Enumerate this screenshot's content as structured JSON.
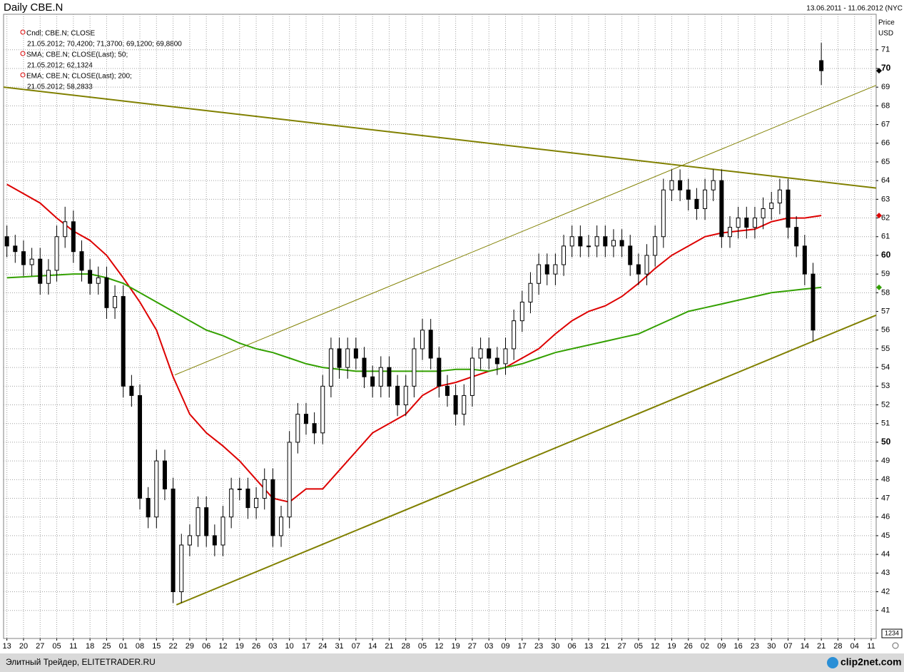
{
  "chart_data": {
    "type": "candlestick",
    "title": "Daily CBE.N",
    "date_range": "13.06.2011 - 11.06.2012 (NYC",
    "y_label": "Price",
    "y_unit": "USD",
    "categories": [
      "13",
      "20",
      "27",
      "05",
      "11",
      "18",
      "25",
      "01",
      "08",
      "15",
      "22",
      "29",
      "06",
      "12",
      "19",
      "26",
      "03",
      "10",
      "17",
      "24",
      "31",
      "07",
      "14",
      "21",
      "28",
      "05",
      "12",
      "19",
      "27",
      "03",
      "09",
      "17",
      "23",
      "30",
      "06",
      "13",
      "21",
      "27",
      "05",
      "12",
      "19",
      "26",
      "02",
      "09",
      "16",
      "23",
      "30",
      "07",
      "14",
      "21",
      "28",
      "04",
      "11"
    ],
    "xlim": [
      -0.2,
      52.3
    ],
    "ylim": [
      39.5,
      72.9
    ],
    "yticks": [
      41,
      42,
      43,
      44,
      45,
      46,
      47,
      48,
      49,
      50,
      51,
      52,
      53,
      54,
      55,
      56,
      57,
      58,
      59,
      60,
      61,
      62,
      63,
      64,
      65,
      66,
      67,
      68,
      69,
      70,
      71
    ],
    "grid": true,
    "axis_box": "1234",
    "candle_legend": {
      "name": "Cndl; CBE.N; CLOSE",
      "label": "21.05.2012; 70,4200; 71,3700; 69,1200; 69,8800"
    },
    "up_color": "#ffffff",
    "down_color": "#000000",
    "candles": {
      "x": [
        0,
        0.5,
        1,
        1.5,
        2,
        2.5,
        3,
        3.5,
        4,
        4.5,
        5,
        5.5,
        6,
        6.5,
        7,
        7.5,
        8,
        8.5,
        9,
        9.5,
        10,
        10.5,
        11,
        11.5,
        12,
        12.5,
        13,
        13.5,
        14,
        14.5,
        15,
        15.5,
        16,
        16.5,
        17,
        17.5,
        18,
        18.5,
        19,
        19.5,
        20,
        20.5,
        21,
        21.5,
        22,
        22.5,
        23,
        23.5,
        24,
        24.5,
        25,
        25.5,
        26,
        26.5,
        27,
        27.5,
        28,
        28.5,
        29,
        29.5,
        30,
        30.5,
        31,
        31.5,
        32,
        32.5,
        33,
        33.5,
        34,
        34.5,
        35,
        35.5,
        36,
        36.5,
        37,
        37.5,
        38,
        38.5,
        39,
        39.5,
        40,
        40.5,
        41,
        41.5,
        42,
        42.5,
        43,
        43.5,
        44,
        44.5,
        45,
        45.5,
        46,
        46.5,
        47,
        47.5,
        48,
        48.5,
        49
      ],
      "open": [
        61,
        60.5,
        60.2,
        59.5,
        59.8,
        58.5,
        59.2,
        61,
        61.8,
        60.2,
        59.2,
        58.5,
        58.8,
        57.2,
        57.8,
        53,
        52.5,
        47,
        46,
        49,
        47.5,
        42,
        44.5,
        45,
        46.5,
        45,
        44.5,
        46,
        47.5,
        47.5,
        46.5,
        47,
        48,
        45,
        46,
        50,
        51.5,
        51,
        50.5,
        53,
        55,
        54,
        55,
        54.5,
        53.5,
        53,
        54,
        53,
        52,
        53,
        55,
        56,
        54.5,
        53,
        52.5,
        51.5,
        52.5,
        54.5,
        55,
        54.5,
        54.2,
        55,
        56.5,
        57.5,
        58.5,
        59.5,
        59,
        59.5,
        60.5,
        61,
        60.5,
        60.5,
        61,
        60.5,
        60.8,
        60.5,
        59.5,
        59,
        60,
        61,
        63.5,
        64,
        63.5,
        63,
        62.5,
        63.5,
        64,
        61,
        61.5,
        62,
        61.5,
        62,
        62.5,
        62.8,
        63.5,
        61.5,
        60.5,
        59,
        70.42
      ],
      "high": [
        61.6,
        61.1,
        60.8,
        60.4,
        60.4,
        59.8,
        61.6,
        62.6,
        62.4,
        60.8,
        59.8,
        59.4,
        59.4,
        58.4,
        58.4,
        53.6,
        53.1,
        47.6,
        49.6,
        49.6,
        48.1,
        45.1,
        45.6,
        47.1,
        47.1,
        45.6,
        46.6,
        48.1,
        48.1,
        48.1,
        47.6,
        48.6,
        48.6,
        46.6,
        50.6,
        52.1,
        52.1,
        51.6,
        53.6,
        55.6,
        55.6,
        55.6,
        55.6,
        55.1,
        54.1,
        54.6,
        54.6,
        53.6,
        53.6,
        55.6,
        56.6,
        56.6,
        55.1,
        53.6,
        53.1,
        53.1,
        55.1,
        55.6,
        55.6,
        55.1,
        55.6,
        57.1,
        58.1,
        59.1,
        60.1,
        60.1,
        60.1,
        61.1,
        61.6,
        61.6,
        61.1,
        61.6,
        61.6,
        61.4,
        61.4,
        61.1,
        60.1,
        60.6,
        61.6,
        64.1,
        64.6,
        64.6,
        64.1,
        63.6,
        64.1,
        64.6,
        64.6,
        62.1,
        62.6,
        62.6,
        62.6,
        63.1,
        63.4,
        64.1,
        64.1,
        62.1,
        61.1,
        59.6,
        71.37
      ],
      "low": [
        59.9,
        59.6,
        58.9,
        58.9,
        57.9,
        57.9,
        58.6,
        60.4,
        59.6,
        58.6,
        57.9,
        57.9,
        56.6,
        56.6,
        52.4,
        51.9,
        46.4,
        45.4,
        45.4,
        46.9,
        41.4,
        41.4,
        43.9,
        44.4,
        44.4,
        43.9,
        43.9,
        45.4,
        46.9,
        45.9,
        45.9,
        46.4,
        44.4,
        44.4,
        45.4,
        49.4,
        50.4,
        49.9,
        49.9,
        52.4,
        53.4,
        53.4,
        53.9,
        52.9,
        52.4,
        52.4,
        52.4,
        51.4,
        51.4,
        52.4,
        54.4,
        53.9,
        52.4,
        51.9,
        50.9,
        50.9,
        51.9,
        53.9,
        53.9,
        53.6,
        53.6,
        54.4,
        55.9,
        56.9,
        57.9,
        58.4,
        58.4,
        58.9,
        59.9,
        59.9,
        59.9,
        59.9,
        59.9,
        59.9,
        59.9,
        58.9,
        58.4,
        58.4,
        59.4,
        60.4,
        62.9,
        62.9,
        62.4,
        61.9,
        61.9,
        62.9,
        60.4,
        60.4,
        60.9,
        60.9,
        60.9,
        61.4,
        61.9,
        62.2,
        60.9,
        59.9,
        58.4,
        55.4,
        69.12
      ],
      "close": [
        60.5,
        60.2,
        59.5,
        59.8,
        58.5,
        59.2,
        61,
        61.8,
        60.2,
        59.2,
        58.5,
        58.8,
        57.2,
        57.8,
        53,
        52.5,
        47,
        46,
        49,
        47.5,
        42,
        44.5,
        45,
        46.5,
        45,
        44.5,
        46,
        47.5,
        47.5,
        46.5,
        47,
        48,
        45,
        46,
        50,
        51.5,
        51,
        50.5,
        53,
        55,
        54,
        55,
        54.5,
        53.5,
        53,
        54,
        53,
        52,
        53,
        55,
        56,
        54.5,
        53,
        52.5,
        51.5,
        52.5,
        54.5,
        55,
        54.5,
        54.2,
        55,
        56.5,
        57.5,
        58.5,
        59.5,
        59,
        59.5,
        60.5,
        61,
        60.5,
        60.5,
        61,
        60.5,
        60.8,
        60.5,
        59.5,
        59,
        60,
        61,
        63.5,
        64,
        63.5,
        63,
        62.5,
        63.5,
        64,
        61,
        61.5,
        62,
        61.5,
        62,
        62.5,
        62.8,
        63.5,
        61.5,
        60.5,
        59,
        56,
        69.88
      ]
    },
    "series": [
      {
        "name": "SMA; CBE.N; CLOSE(Last);  50;",
        "label": "21.05.2012; 62,1324",
        "color": "#dd0000",
        "values": [
          63.8,
          63.3,
          62.8,
          62,
          61.3,
          60.8,
          60,
          58.8,
          57.5,
          56,
          53.5,
          51.5,
          50.5,
          49.8,
          49,
          48,
          47,
          46.8,
          47.5,
          47.5,
          48.5,
          49.5,
          50.5,
          51,
          51.5,
          52.5,
          53,
          53.2,
          53.5,
          53.8,
          54,
          54.5,
          55,
          55.8,
          56.5,
          57,
          57.3,
          57.8,
          58.5,
          59.3,
          60,
          60.5,
          61,
          61.2,
          61.3,
          61.4,
          61.8,
          62,
          62,
          62.1324,
          null,
          null,
          null
        ]
      },
      {
        "name": "EMA; CBE.N; CLOSE(Last);  200;",
        "label": "21.05.2012; 58,2833",
        "color": "#33a000",
        "values": [
          58.8,
          58.85,
          58.9,
          58.95,
          59,
          59,
          58.8,
          58.5,
          58,
          57.5,
          57,
          56.5,
          56,
          55.7,
          55.3,
          55,
          54.8,
          54.5,
          54.2,
          54,
          53.9,
          53.8,
          53.8,
          53.8,
          53.8,
          53.8,
          53.8,
          53.9,
          53.9,
          53.8,
          54,
          54.2,
          54.5,
          54.8,
          55,
          55.2,
          55.4,
          55.6,
          55.8,
          56.2,
          56.6,
          57,
          57.2,
          57.4,
          57.6,
          57.8,
          58,
          58.1,
          58.2,
          58.2833,
          null,
          null,
          null
        ]
      }
    ],
    "trendlines": [
      {
        "x": [
          -0.2,
          52.3
        ],
        "y": [
          69,
          63.6
        ],
        "color": "#808000",
        "style": "thick"
      },
      {
        "x": [
          10.1,
          52.3
        ],
        "y": [
          53.6,
          69.1
        ],
        "color": "#808000",
        "style": "thin"
      },
      {
        "x": [
          10.2,
          52.3
        ],
        "y": [
          41.3,
          56.8
        ],
        "color": "#808000",
        "style": "thick"
      }
    ]
  },
  "footer": {
    "source": "Элитный Трейдер, ELITETRADER.RU",
    "logo": "clip2net.com"
  }
}
